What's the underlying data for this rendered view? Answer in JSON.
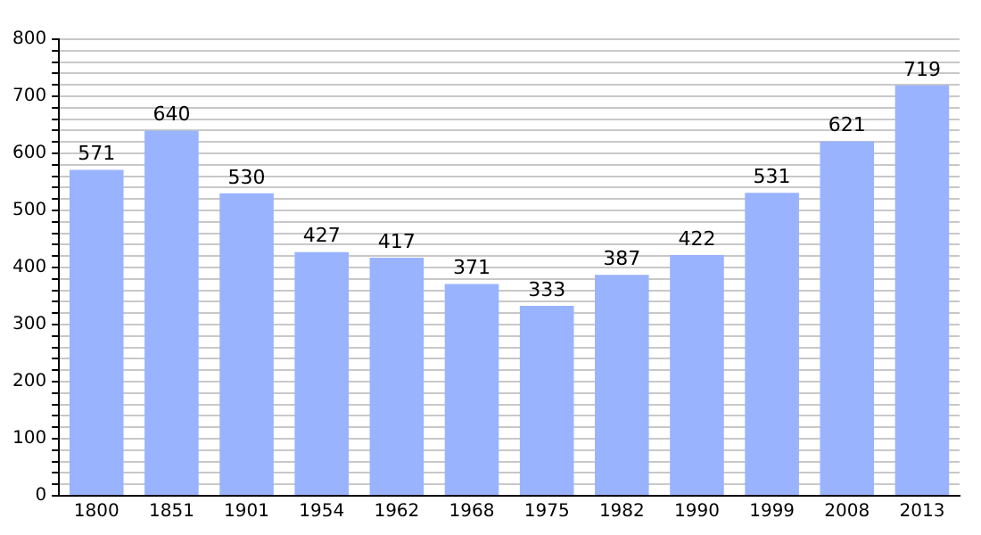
{
  "chart_data": {
    "type": "bar",
    "categories": [
      "1800",
      "1851",
      "1901",
      "1954",
      "1962",
      "1968",
      "1975",
      "1982",
      "1990",
      "1999",
      "2008",
      "2013"
    ],
    "values": [
      571,
      640,
      530,
      427,
      417,
      371,
      333,
      387,
      422,
      531,
      621,
      719
    ],
    "color": "#99b3ff",
    "ylim": [
      0,
      800
    ],
    "yticks": [
      0,
      {
        "value": 20,
        "label": null
      },
      {
        "value": 40,
        "label": null
      },
      {
        "value": 60,
        "label": null
      },
      {
        "value": 80,
        "label": null
      },
      100,
      {
        "value": 120,
        "label": null
      },
      {
        "value": 140,
        "label": null
      },
      {
        "value": 160,
        "label": null
      },
      {
        "value": 180,
        "label": null
      },
      200,
      {
        "value": 220,
        "label": null
      },
      {
        "value": 240,
        "label": null
      },
      {
        "value": 260,
        "label": null
      },
      {
        "value": 280,
        "label": null
      },
      300,
      {
        "value": 320,
        "label": null
      },
      {
        "value": 340,
        "label": null
      },
      {
        "value": 360,
        "label": null
      },
      {
        "value": 380,
        "label": null
      },
      400,
      {
        "value": 420,
        "label": null
      },
      {
        "value": 440,
        "label": null
      },
      {
        "value": 460,
        "label": null
      },
      {
        "value": 480,
        "label": null
      },
      500,
      {
        "value": 520,
        "label": null
      },
      {
        "value": 540,
        "label": null
      },
      {
        "value": 560,
        "label": null
      },
      {
        "value": 580,
        "label": null
      },
      600,
      {
        "value": 620,
        "label": null
      },
      {
        "value": 640,
        "label": null
      },
      {
        "value": 660,
        "label": null
      },
      {
        "value": 680,
        "label": null
      },
      700,
      {
        "value": 720,
        "label": null
      },
      {
        "value": 740,
        "label": null
      },
      {
        "value": 760,
        "label": null
      },
      {
        "value": 780,
        "label": null
      },
      800
    ],
    "grid": "y",
    "data_labels": true
  }
}
